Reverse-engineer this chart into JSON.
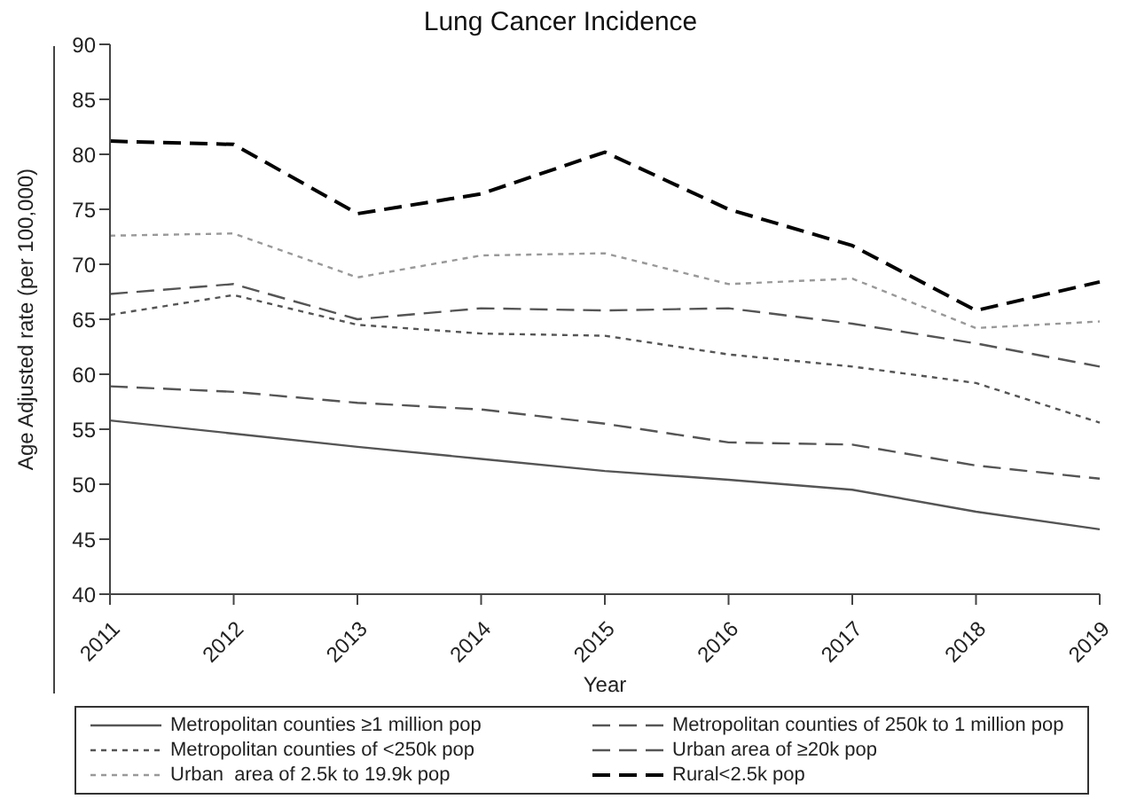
{
  "chart_data": {
    "type": "line",
    "title": "Lung Cancer Incidence",
    "xlabel": "Year",
    "ylabel": "Age Adjusted rate (per 100,000)",
    "categories": [
      "2011",
      "2012",
      "2013",
      "2014",
      "2015",
      "2016",
      "2017",
      "2018",
      "2019"
    ],
    "series": [
      {
        "name": "Metropolitan counties ≥1 million pop",
        "color": "#555555",
        "line_style": "solid",
        "values": [
          55.8,
          54.6,
          53.4,
          52.3,
          51.2,
          50.4,
          49.5,
          47.5,
          45.9
        ]
      },
      {
        "name": "Metropolitan counties of 250k to 1 million pop",
        "color": "#555555",
        "line_style": "dashed",
        "values": [
          58.9,
          58.4,
          57.4,
          56.8,
          55.5,
          53.8,
          53.6,
          51.7,
          50.5
        ]
      },
      {
        "name": "Metropolitan counties of <250k pop",
        "color": "#555555",
        "line_style": "dotted",
        "values": [
          65.4,
          67.2,
          64.5,
          63.7,
          63.5,
          61.8,
          60.7,
          59.2,
          55.6
        ]
      },
      {
        "name": "Urban area of ≥20k pop",
        "color": "#555555",
        "line_style": "dashed",
        "values": [
          67.3,
          68.2,
          65.0,
          66.0,
          65.8,
          66.0,
          64.6,
          62.8,
          60.7
        ]
      },
      {
        "name": "Urban  area of 2.5k to 19.9k pop",
        "color": "#999999",
        "line_style": "dotted",
        "values": [
          72.6,
          72.8,
          68.8,
          70.8,
          71.0,
          68.2,
          68.7,
          64.2,
          64.8
        ]
      },
      {
        "name": "Rural<2.5k pop",
        "color": "#000000",
        "line_style": "dashed",
        "values": [
          81.2,
          80.9,
          74.6,
          76.4,
          80.2,
          75.0,
          71.7,
          65.8,
          68.4
        ]
      }
    ],
    "ylim": [
      40,
      90
    ],
    "yticks": [
      40,
      45,
      50,
      55,
      60,
      65,
      70,
      75,
      80,
      85,
      90
    ],
    "grid": false,
    "legend": "bottom",
    "marker": "none"
  }
}
